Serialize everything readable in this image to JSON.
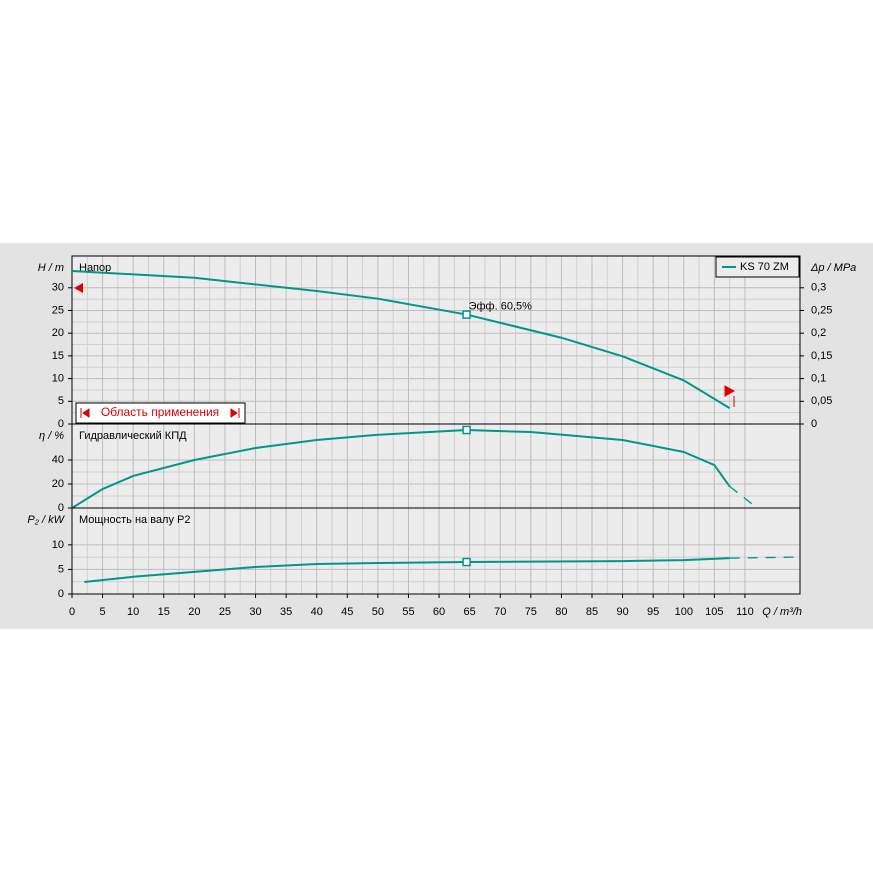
{
  "chart_data": [
    {
      "type": "line",
      "title": "Напор",
      "ylabel": "H / m",
      "y2label": "Δp / MPa",
      "ylim": [
        0,
        37
      ],
      "yticks": [
        0,
        5,
        10,
        15,
        20,
        25,
        30
      ],
      "y2lim": [
        0,
        0.37
      ],
      "y2ticks": [
        0,
        {
          "value": 0.05,
          "label": "0,05"
        },
        {
          "value": 0.1,
          "label": "0,1"
        },
        {
          "value": 0.15,
          "label": "0,15"
        },
        {
          "value": 0.2,
          "label": "0,2"
        },
        {
          "value": 0.25,
          "label": "0,25"
        },
        {
          "value": 0.3,
          "label": "0,3"
        }
      ],
      "xlim": [
        0,
        119
      ],
      "legend": "top-right",
      "grid": true,
      "series": [
        {
          "name": "KS 70 ZM",
          "color": "#00968a",
          "x": [
            0,
            20,
            40,
            50,
            64.5,
            80,
            90,
            100,
            107.5
          ],
          "values": [
            33.7,
            32.2,
            29.3,
            27.6,
            24.1,
            19,
            14.9,
            9.6,
            3.5
          ]
        }
      ],
      "marker": {
        "x": 64.5,
        "y": 24.1
      },
      "annotation": "Эфф. 60,5%",
      "range_label": "Область применения"
    },
    {
      "type": "line",
      "title": "Гидравлический КПД",
      "ylabel": "η / %",
      "ylim": [
        0,
        70
      ],
      "yticks": [
        0,
        20,
        40
      ],
      "xlim": [
        0,
        119
      ],
      "grid": true,
      "series": [
        {
          "color": "#00968a",
          "x": [
            0,
            5,
            10,
            20,
            30,
            40,
            50,
            64.5,
            75,
            90,
            100,
            105,
            107.5
          ],
          "values": [
            0,
            15.8,
            26.7,
            40,
            50,
            56.7,
            61,
            65,
            63.3,
            56.7,
            46.7,
            35.8,
            18
          ]
        },
        {
          "color": "#00968a",
          "dashed": true,
          "x": [
            107.5,
            112
          ],
          "values": [
            18,
            0
          ]
        }
      ],
      "marker": {
        "x": 64.5,
        "y": 65
      }
    },
    {
      "type": "line",
      "title": "Мощность на валу P2",
      "ylabel": "P₂ / kW",
      "xlabel": "Q / m³/h",
      "ylim": [
        0,
        17.5
      ],
      "yticks": [
        0,
        5,
        10
      ],
      "xlim": [
        0,
        119
      ],
      "xticks": [
        0,
        5,
        10,
        15,
        20,
        25,
        30,
        35,
        40,
        45,
        50,
        55,
        60,
        65,
        70,
        75,
        80,
        85,
        90,
        95,
        100,
        105,
        110
      ],
      "grid": true,
      "series": [
        {
          "color": "#00968a",
          "x": [
            2,
            10,
            20,
            30,
            40,
            50,
            64.5,
            90,
            100,
            107.5
          ],
          "values": [
            2.45,
            3.5,
            4.5,
            5.5,
            6.1,
            6.3,
            6.5,
            6.7,
            6.9,
            7.3
          ]
        },
        {
          "color": "#00968a",
          "dashed": true,
          "x": [
            107.5,
            118
          ],
          "values": [
            7.3,
            7.5
          ]
        }
      ],
      "marker": {
        "x": 64.5,
        "y": 6.5
      }
    }
  ]
}
